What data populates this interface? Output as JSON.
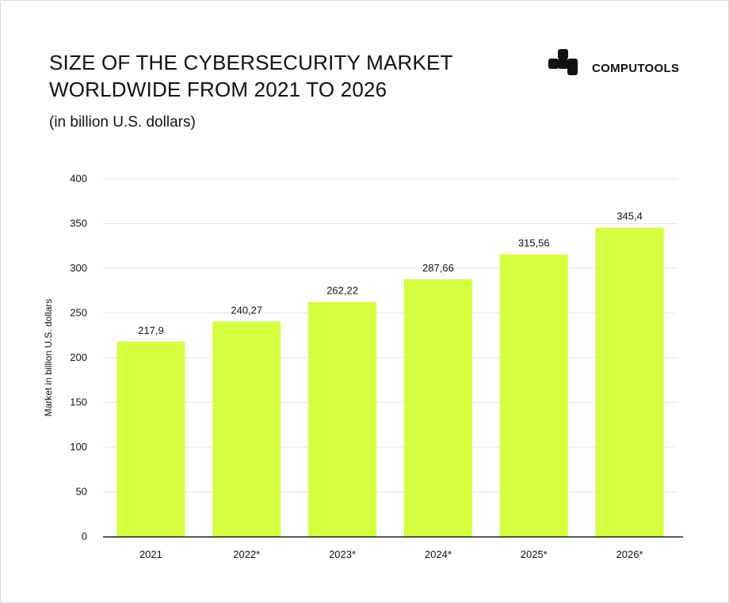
{
  "header": {
    "title": "SIZE OF THE CYBERSECURITY MARKET WORLDWIDE FROM 2021 TO 2026",
    "subtitle": "(in billion U.S. dollars)"
  },
  "brand": {
    "name": "COMPUTOOLS",
    "logo_icon": "computools-logo-icon"
  },
  "colors": {
    "bar": "#d4ff3f",
    "grid": "#e6e6e6",
    "axis": "#111111",
    "text": "#111111"
  },
  "chart_data": {
    "type": "bar",
    "categories": [
      "2021",
      "2022*",
      "2023*",
      "2024*",
      "2025*",
      "2026*"
    ],
    "values": [
      217.9,
      240.27,
      262.22,
      287.66,
      315.56,
      345.4
    ],
    "value_labels": [
      "217,9",
      "240,27",
      "262,22",
      "287,66",
      "315,56",
      "345,4"
    ],
    "title": "SIZE OF THE CYBERSECURITY MARKET WORLDWIDE FROM 2021 TO 2026",
    "subtitle": "(in billion U.S. dollars)",
    "xlabel": "",
    "ylabel": "Market in billion U.S. dollars",
    "ylim": [
      0,
      400
    ],
    "yticks": [
      0,
      50,
      100,
      150,
      200,
      250,
      300,
      350,
      400
    ],
    "grid": true,
    "legend": "none"
  }
}
